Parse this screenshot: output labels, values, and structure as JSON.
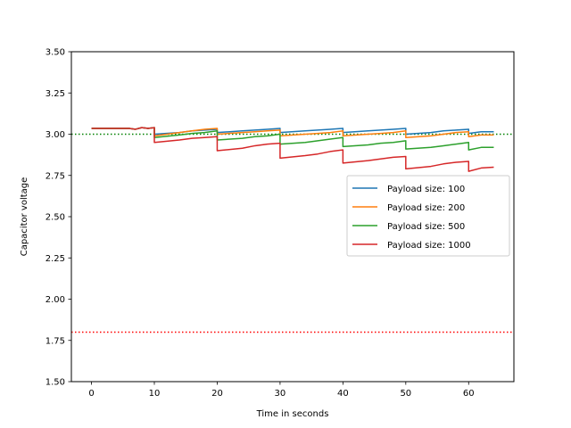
{
  "chart_data": {
    "type": "line",
    "xlabel": "Time in seconds",
    "ylabel": "Capacitor voltage",
    "xlim": [
      -3.2,
      67.2
    ],
    "ylim": [
      1.5,
      3.5
    ],
    "xticks": [
      0,
      10,
      20,
      30,
      40,
      50,
      60
    ],
    "yticks": [
      1.5,
      1.75,
      2.0,
      2.25,
      2.5,
      2.75,
      3.0,
      3.25,
      3.5
    ],
    "xtick_labels": [
      "0",
      "10",
      "20",
      "30",
      "40",
      "50",
      "60"
    ],
    "ytick_labels": [
      "1.50",
      "1.75",
      "2.00",
      "2.25",
      "2.50",
      "2.75",
      "3.00",
      "3.25",
      "3.50"
    ],
    "grid": false,
    "legend_position": "center-right",
    "reference_lines": [
      {
        "y": 3.0,
        "color": "#008000",
        "style": "dotted"
      },
      {
        "y": 1.8,
        "color": "#ff0000",
        "style": "dotted"
      }
    ],
    "series": [
      {
        "name": "Payload size: 100",
        "color": "#1f77b4",
        "x": [
          0,
          6,
          7,
          8,
          9,
          10,
          10.0,
          14,
          16,
          18,
          20,
          20.0,
          24,
          26,
          28,
          30,
          30.0,
          34,
          36,
          38,
          40,
          40.0,
          44,
          46,
          48,
          50,
          50.0,
          54,
          56,
          58,
          60,
          60.0,
          62,
          64
        ],
        "y": [
          3.035,
          3.035,
          3.03,
          3.04,
          3.035,
          3.04,
          3.0,
          3.01,
          3.02,
          3.025,
          3.03,
          3.01,
          3.02,
          3.025,
          3.03,
          3.035,
          3.01,
          3.02,
          3.025,
          3.03,
          3.035,
          3.01,
          3.02,
          3.025,
          3.03,
          3.035,
          3.0,
          3.01,
          3.02,
          3.025,
          3.03,
          3.005,
          3.015,
          3.015
        ]
      },
      {
        "name": "Payload size: 200",
        "color": "#ff7f0e",
        "x": [
          0,
          6,
          7,
          8,
          9,
          10,
          10.0,
          14,
          16,
          18,
          20,
          20.0,
          24,
          26,
          28,
          30,
          30.0,
          34,
          36,
          38,
          40,
          40.0,
          44,
          46,
          48,
          50,
          50.0,
          54,
          56,
          58,
          60,
          60.0,
          62,
          64
        ],
        "y": [
          3.035,
          3.035,
          3.03,
          3.04,
          3.035,
          3.04,
          2.99,
          3.01,
          3.02,
          3.03,
          3.035,
          3.0,
          3.01,
          3.015,
          3.02,
          3.025,
          2.99,
          3.0,
          3.005,
          3.01,
          3.02,
          2.99,
          3.0,
          3.005,
          3.01,
          3.02,
          2.98,
          2.99,
          3.0,
          3.01,
          3.015,
          2.985,
          2.995,
          2.995
        ]
      },
      {
        "name": "Payload size: 500",
        "color": "#2ca02c",
        "x": [
          0,
          6,
          7,
          8,
          9,
          10,
          10.0,
          14,
          16,
          18,
          20,
          20.0,
          24,
          26,
          28,
          30,
          30.0,
          34,
          36,
          38,
          40,
          40.0,
          44,
          46,
          48,
          50,
          50.0,
          54,
          56,
          58,
          60,
          60.0,
          62,
          64
        ],
        "y": [
          3.035,
          3.035,
          3.03,
          3.04,
          3.035,
          3.04,
          2.98,
          2.995,
          3.005,
          3.01,
          3.02,
          2.965,
          2.975,
          2.985,
          2.99,
          3.0,
          2.94,
          2.95,
          2.96,
          2.97,
          2.98,
          2.925,
          2.935,
          2.945,
          2.95,
          2.96,
          2.91,
          2.92,
          2.93,
          2.94,
          2.95,
          2.905,
          2.92,
          2.92
        ]
      },
      {
        "name": "Payload size: 1000",
        "color": "#d62728",
        "x": [
          0,
          6,
          7,
          8,
          9,
          10,
          10.0,
          14,
          16,
          18,
          20,
          20.0,
          24,
          26,
          28,
          30,
          30.0,
          34,
          36,
          38,
          40,
          40.0,
          44,
          46,
          48,
          50,
          50.0,
          54,
          56,
          58,
          60,
          60.0,
          62,
          64
        ],
        "y": [
          3.035,
          3.035,
          3.03,
          3.04,
          3.035,
          3.04,
          2.95,
          2.965,
          2.975,
          2.98,
          2.985,
          2.9,
          2.915,
          2.93,
          2.94,
          2.945,
          2.855,
          2.87,
          2.88,
          2.895,
          2.905,
          2.825,
          2.84,
          2.85,
          2.86,
          2.865,
          2.79,
          2.805,
          2.82,
          2.83,
          2.835,
          2.775,
          2.795,
          2.8
        ]
      }
    ]
  }
}
